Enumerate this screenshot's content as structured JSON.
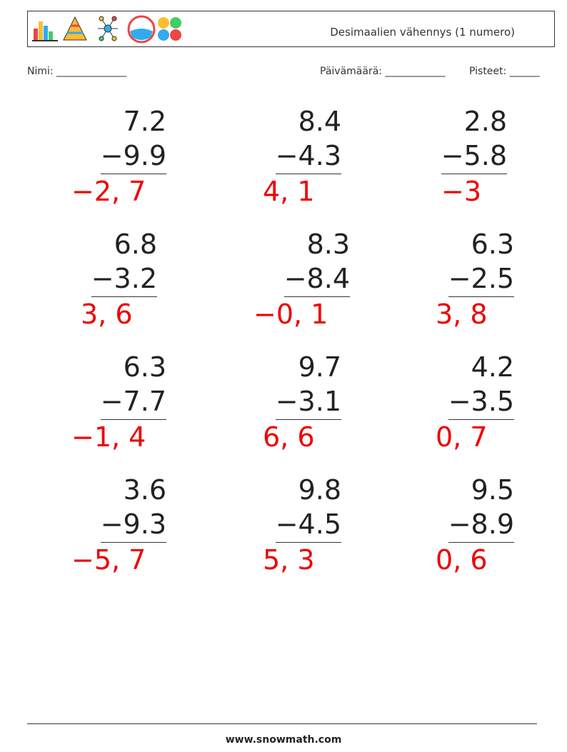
{
  "header": {
    "title": "Desimaalien vähennys (1 numero)"
  },
  "fields": {
    "name": "Nimi: ______________",
    "date": "Päivämäärä: ____________",
    "score": "Pisteet: ______"
  },
  "problems": [
    {
      "top": "7.2",
      "bottom": "−9.9",
      "answer": "−2, 7"
    },
    {
      "top": "8.4",
      "bottom": "−4.3",
      "answer": "4, 1"
    },
    {
      "top": "2.8",
      "bottom": "−5.8",
      "answer": "−3"
    },
    {
      "top": "6.8",
      "bottom": "−3.2",
      "answer": "3, 6"
    },
    {
      "top": "8.3",
      "bottom": "−8.4",
      "answer": "−0, 1"
    },
    {
      "top": "6.3",
      "bottom": "−2.5",
      "answer": "3, 8"
    },
    {
      "top": "6.3",
      "bottom": "−7.7",
      "answer": "−1, 4"
    },
    {
      "top": "9.7",
      "bottom": "−3.1",
      "answer": "6, 6"
    },
    {
      "top": "4.2",
      "bottom": "−3.5",
      "answer": "0, 7"
    },
    {
      "top": "3.6",
      "bottom": "−9.3",
      "answer": "−5, 7"
    },
    {
      "top": "9.8",
      "bottom": "−4.5",
      "answer": "5, 3"
    },
    {
      "top": "9.5",
      "bottom": "−8.9",
      "answer": "0, 6"
    }
  ],
  "footer": {
    "site": "www.snowmath.com"
  }
}
